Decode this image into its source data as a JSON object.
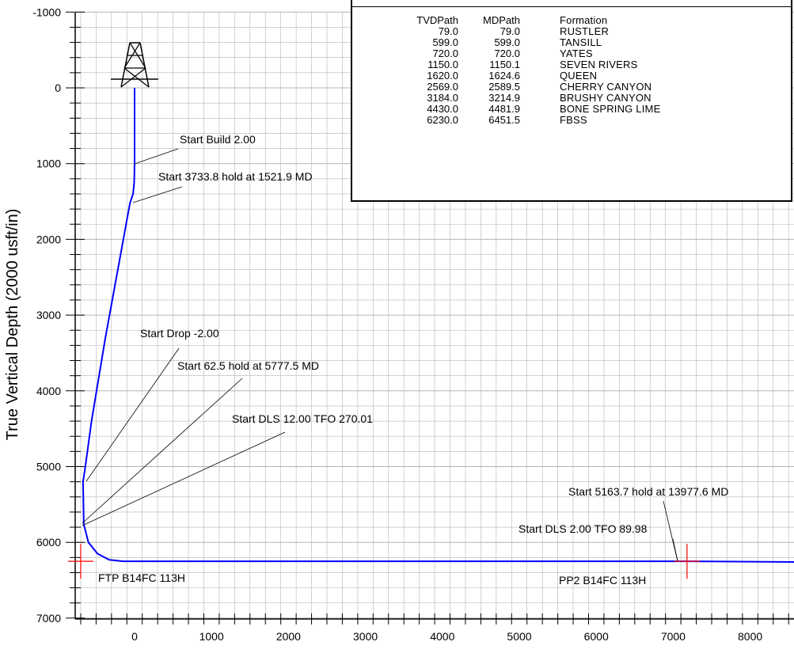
{
  "colors": {
    "well_path": "#0000ff",
    "target_marker": "#ff0000",
    "grid": "#b4b4b4",
    "background": "#ffffff"
  },
  "chart_data": {
    "type": "line",
    "ylabel": "True Vertical Depth (2000 usft/in)",
    "xlabel": "",
    "xlim": [
      -800,
      8650
    ],
    "ylim": [
      -1000,
      7000
    ],
    "y_inverted": true,
    "grid": true,
    "xticks": [
      0,
      1000,
      2000,
      3000,
      4000,
      5000,
      6000,
      7000,
      8000
    ],
    "yticks": [
      -1000,
      0,
      1000,
      2000,
      3000,
      4000,
      5000,
      6000,
      7000
    ],
    "xtick_labels": [
      "0",
      "1000",
      "2000",
      "3000",
      "4000",
      "5000",
      "6000",
      "7000",
      "8000"
    ],
    "ytick_labels": [
      "-1000",
      "0",
      "1000",
      "2000",
      "3000",
      "4000",
      "5000",
      "6000",
      "7000"
    ],
    "series": [
      {
        "x": [
          0,
          0,
          -5,
          -20,
          -60,
          -380,
          -560,
          -640,
          -670,
          -660,
          -600,
          -480,
          -330,
          -150,
          0,
          2000,
          4000,
          6000,
          7180,
          8650
        ],
        "y": [
          0,
          1000,
          1250,
          1400,
          1520,
          3300,
          4400,
          5000,
          5200,
          5760,
          6000,
          6150,
          6230,
          6250,
          6250,
          6250,
          6250,
          6250,
          6250,
          6260
        ]
      }
    ],
    "annotations": [
      {
        "text": "Start Build 2.00",
        "x": 0,
        "y": 1000
      },
      {
        "text": "Start 3733.8 hold at 1521.9 MD",
        "x": -20,
        "y": 1520
      },
      {
        "text": "Start Drop -2.00",
        "x": -640,
        "y": 5200
      },
      {
        "text": "Start 62.5 hold at 5777.5 MD",
        "x": -690,
        "y": 5700
      },
      {
        "text": "Start DLS 12.00 TFO 270.01",
        "x": -680,
        "y": 5760
      },
      {
        "text": "Start 5163.7 hold at 13977.6 MD",
        "x": 7180,
        "y": 6250
      },
      {
        "text": "Start DLS 2.00 TFO 89.98",
        "x": 7180,
        "y": 6250
      }
    ],
    "targets": [
      {
        "name": "FTP B14FC 113H",
        "x": -700,
        "y": 6250
      },
      {
        "name": "PP2 B14FC 113H",
        "x": 7180,
        "y": 6250
      }
    ]
  },
  "formation_table": {
    "headers": {
      "tvd": "TVDPath",
      "md": "MDPath",
      "formation": "Formation"
    },
    "rows": [
      {
        "tvd": "79.0",
        "md": "79.0",
        "formation": "RUSTLER"
      },
      {
        "tvd": "599.0",
        "md": "599.0",
        "formation": "TANSILL"
      },
      {
        "tvd": "720.0",
        "md": "720.0",
        "formation": "YATES"
      },
      {
        "tvd": "1150.0",
        "md": "1150.1",
        "formation": "SEVEN RIVERS"
      },
      {
        "tvd": "1620.0",
        "md": "1624.6",
        "formation": "QUEEN"
      },
      {
        "tvd": "2569.0",
        "md": "2589.5",
        "formation": "CHERRY CANYON"
      },
      {
        "tvd": "3184.0",
        "md": "3214.9",
        "formation": "BRUSHY CANYON"
      },
      {
        "tvd": "4430.0",
        "md": "4481.9",
        "formation": "BONE SPRING LIME"
      },
      {
        "tvd": "6230.0",
        "md": "6451.5",
        "formation": "FBSS"
      }
    ]
  }
}
